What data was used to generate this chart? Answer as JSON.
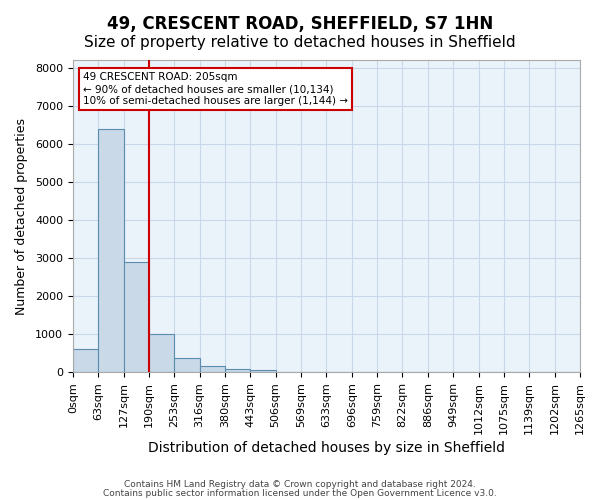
{
  "title1": "49, CRESCENT ROAD, SHEFFIELD, S7 1HN",
  "title2": "Size of property relative to detached houses in Sheffield",
  "xlabel": "Distribution of detached houses by size in Sheffield",
  "ylabel": "Number of detached properties",
  "bin_labels": [
    "0sqm",
    "63sqm",
    "127sqm",
    "190sqm",
    "253sqm",
    "316sqm",
    "380sqm",
    "443sqm",
    "506sqm",
    "569sqm",
    "633sqm",
    "696sqm",
    "759sqm",
    "822sqm",
    "886sqm",
    "949sqm",
    "1012sqm",
    "1075sqm",
    "1139sqm",
    "1202sqm",
    "1265sqm"
  ],
  "bar_heights": [
    600,
    6400,
    2900,
    1000,
    380,
    160,
    100,
    50,
    0,
    0,
    0,
    0,
    0,
    0,
    0,
    0,
    0,
    0,
    0,
    0
  ],
  "bar_color": "#c9d9e8",
  "bar_edge_color": "#5a8db0",
  "red_line_x": 3.0,
  "annotation_text": "49 CRESCENT ROAD: 205sqm\n← 90% of detached houses are smaller (10,134)\n10% of semi-detached houses are larger (1,144) →",
  "annotation_box_color": "#cc0000",
  "ylim": [
    0,
    8200
  ],
  "yticks": [
    0,
    1000,
    2000,
    3000,
    4000,
    5000,
    6000,
    7000,
    8000
  ],
  "grid_color": "#c8d8e8",
  "bg_color": "#eaf2fa",
  "footer1": "Contains HM Land Registry data © Crown copyright and database right 2024.",
  "footer2": "Contains public sector information licensed under the Open Government Licence v3.0.",
  "title1_fontsize": 12,
  "title2_fontsize": 11,
  "xlabel_fontsize": 10,
  "ylabel_fontsize": 9,
  "tick_fontsize": 8
}
